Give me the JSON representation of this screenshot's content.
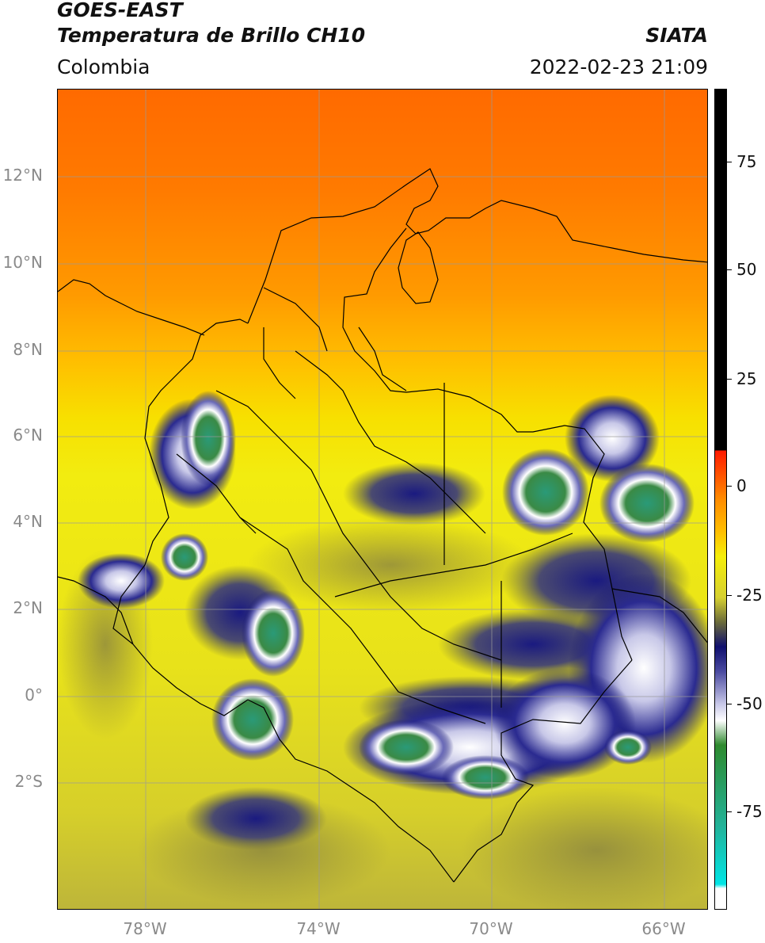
{
  "header": {
    "title_line1": "GOES-EAST",
    "title_line2": "Temperatura de Brillo CH10",
    "region": "Colombia",
    "brand": "SIATA",
    "datetime": "2022-02-23 21:09"
  },
  "map": {
    "lat_labels": [
      "12°N",
      "10°N",
      "8°N",
      "6°N",
      "4°N",
      "2°N",
      "0°",
      "2°S"
    ],
    "lon_labels": [
      "78°W",
      "74°W",
      "70°W",
      "66°W"
    ]
  },
  "colorbar": {
    "tick_labels": [
      "75",
      "50",
      "25",
      "0",
      "-25",
      "-50",
      "-75"
    ],
    "colors": {
      "black": "#000000",
      "red": "#ff1a00",
      "orange": "#ff9900",
      "yellow": "#f5ee0a",
      "olive": "#6b6b3a",
      "navy": "#10106e",
      "white": "#ffffff",
      "green": "#2e8a2e",
      "teal": "#22b39a",
      "cyan": "#00e5e5"
    }
  }
}
